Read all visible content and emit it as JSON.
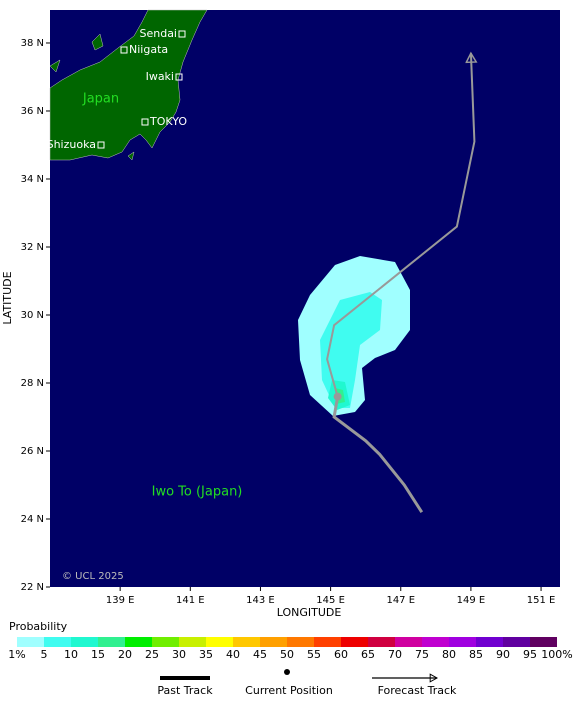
{
  "map": {
    "xlabel": "LONGITUDE",
    "ylabel": "LATITUDE",
    "xlim": [
      137,
      151.54
    ],
    "ylim": [
      22,
      38.97
    ],
    "xticks": [
      {
        "value": 139,
        "label": "139 E"
      },
      {
        "value": 141,
        "label": "141 E"
      },
      {
        "value": 143,
        "label": "143 E"
      },
      {
        "value": 145,
        "label": "145 E"
      },
      {
        "value": 147,
        "label": "147 E"
      },
      {
        "value": 149,
        "label": "149 E"
      },
      {
        "value": 151,
        "label": "151 E"
      }
    ],
    "yticks": [
      {
        "value": 22,
        "label": "22 N"
      },
      {
        "value": 24,
        "label": "24 N"
      },
      {
        "value": 26,
        "label": "26 N"
      },
      {
        "value": 28,
        "label": "28 N"
      },
      {
        "value": 30,
        "label": "30 N"
      },
      {
        "value": 32,
        "label": "32 N"
      },
      {
        "value": 34,
        "label": "34 N"
      },
      {
        "value": 36,
        "label": "36 N"
      },
      {
        "value": 38,
        "label": "38 N"
      }
    ],
    "places": [
      "Sendai",
      "Niigata",
      "Iwaki",
      "TOKYO",
      "Shizuoka"
    ],
    "regions": [
      "Japan",
      "Iwo To (Japan)"
    ],
    "copyright": "© UCL 2025",
    "past_track": {
      "lon": [
        147.6,
        147.1,
        146.4,
        146.0,
        145.1,
        145.2
      ],
      "lat": [
        24.2,
        25.0,
        25.9,
        26.3,
        27.0,
        27.6
      ]
    },
    "forecast_track": {
      "lon": [
        145.2,
        144.9,
        145.1,
        148.6,
        149.1,
        149.0
      ],
      "lat": [
        27.6,
        28.7,
        29.7,
        32.6,
        35.1,
        37.7
      ]
    }
  },
  "legend": {
    "title": "Probability",
    "labels": [
      "1%",
      "5",
      "10",
      "15",
      "20",
      "25",
      "30",
      "35",
      "40",
      "45",
      "50",
      "55",
      "60",
      "65",
      "70",
      "75",
      "80",
      "85",
      "90",
      "95",
      "100%"
    ],
    "colors": [
      "#a0ffff",
      "#40fcf0",
      "#20f8d0",
      "#30f090",
      "#00ee00",
      "#70ee00",
      "#c8f000",
      "#ffff00",
      "#ffc800",
      "#ffa000",
      "#ff7800",
      "#ff4000",
      "#ee0000",
      "#d00040",
      "#d000a0",
      "#c000d0",
      "#a000e0",
      "#7000d0",
      "#6000a0",
      "#600060"
    ],
    "past": "Past Track",
    "current": "Current Position",
    "forecast": "Forecast Track"
  }
}
